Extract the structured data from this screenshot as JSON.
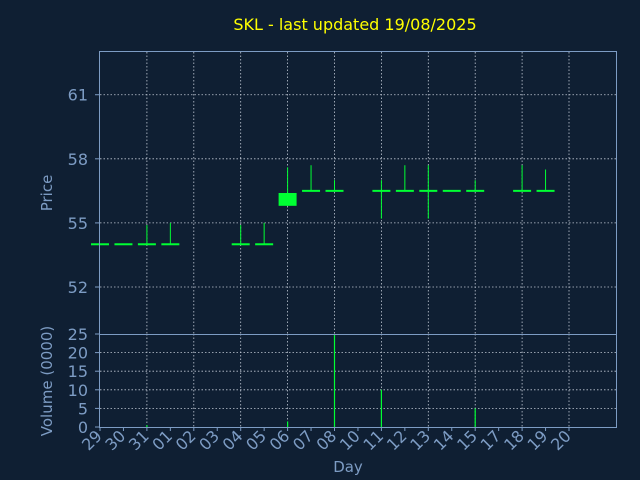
{
  "chart_data": [
    {
      "type": "candlestick",
      "title": "SKL - last updated 19/08/2025",
      "ylabel": "Price",
      "ylim": [
        49.8,
        63
      ],
      "yticks": [
        52,
        55,
        58,
        61
      ],
      "grid": true,
      "up_color": "#00ff33",
      "categories": [
        "29",
        "30",
        "31",
        "01",
        "02",
        "03",
        "04",
        "05",
        "06",
        "07",
        "08",
        "10",
        "11",
        "12",
        "13",
        "14",
        "15",
        "17",
        "18",
        "19",
        "20"
      ],
      "candles": [
        {
          "x": "29",
          "open": 54.0,
          "close": 54.0,
          "high": 54.0,
          "low": 54.0
        },
        {
          "x": "30",
          "open": 54.0,
          "close": 54.0,
          "high": 54.0,
          "low": 54.0
        },
        {
          "x": "31",
          "open": 54.0,
          "close": 54.0,
          "high": 54.9,
          "low": 54.0
        },
        {
          "x": "01",
          "open": 54.0,
          "close": 54.0,
          "high": 55.0,
          "low": 54.0
        },
        {
          "x": "04",
          "open": 54.0,
          "close": 54.0,
          "high": 54.9,
          "low": 54.0
        },
        {
          "x": "05",
          "open": 54.0,
          "close": 54.0,
          "high": 55.0,
          "low": 54.0
        },
        {
          "x": "06",
          "open": 55.8,
          "close": 56.4,
          "high": 57.6,
          "low": 55.8
        },
        {
          "x": "07",
          "open": 56.5,
          "close": 56.5,
          "high": 57.7,
          "low": 56.5
        },
        {
          "x": "08",
          "open": 56.5,
          "close": 56.5,
          "high": 57.0,
          "low": 56.5
        },
        {
          "x": "11",
          "open": 56.5,
          "close": 56.5,
          "high": 57.0,
          "low": 55.2
        },
        {
          "x": "12",
          "open": 56.5,
          "close": 56.5,
          "high": 57.7,
          "low": 56.5
        },
        {
          "x": "13",
          "open": 56.5,
          "close": 56.5,
          "high": 57.7,
          "low": 55.2
        },
        {
          "x": "14",
          "open": 56.5,
          "close": 56.5,
          "high": 56.5,
          "low": 56.5
        },
        {
          "x": "15",
          "open": 56.5,
          "close": 56.5,
          "high": 57.0,
          "low": 56.5
        },
        {
          "x": "18",
          "open": 56.5,
          "close": 56.5,
          "high": 57.7,
          "low": 56.5
        },
        {
          "x": "19",
          "open": 56.5,
          "close": 56.5,
          "high": 57.5,
          "low": 56.5
        }
      ]
    },
    {
      "type": "bar",
      "ylabel": "Volume (0000)",
      "xlabel": "Day",
      "ylim": [
        0,
        25
      ],
      "yticks": [
        0,
        5,
        10,
        15,
        20,
        25
      ],
      "grid": true,
      "bar_color": "#00ff33",
      "categories": [
        "29",
        "30",
        "31",
        "01",
        "02",
        "03",
        "04",
        "05",
        "06",
        "07",
        "08",
        "10",
        "11",
        "12",
        "13",
        "14",
        "15",
        "17",
        "18",
        "19",
        "20"
      ],
      "values": [
        {
          "x": "31",
          "value": 0.5
        },
        {
          "x": "06",
          "value": 1.5
        },
        {
          "x": "08",
          "value": 25
        },
        {
          "x": "11",
          "value": 10
        },
        {
          "x": "15",
          "value": 5
        }
      ]
    }
  ]
}
